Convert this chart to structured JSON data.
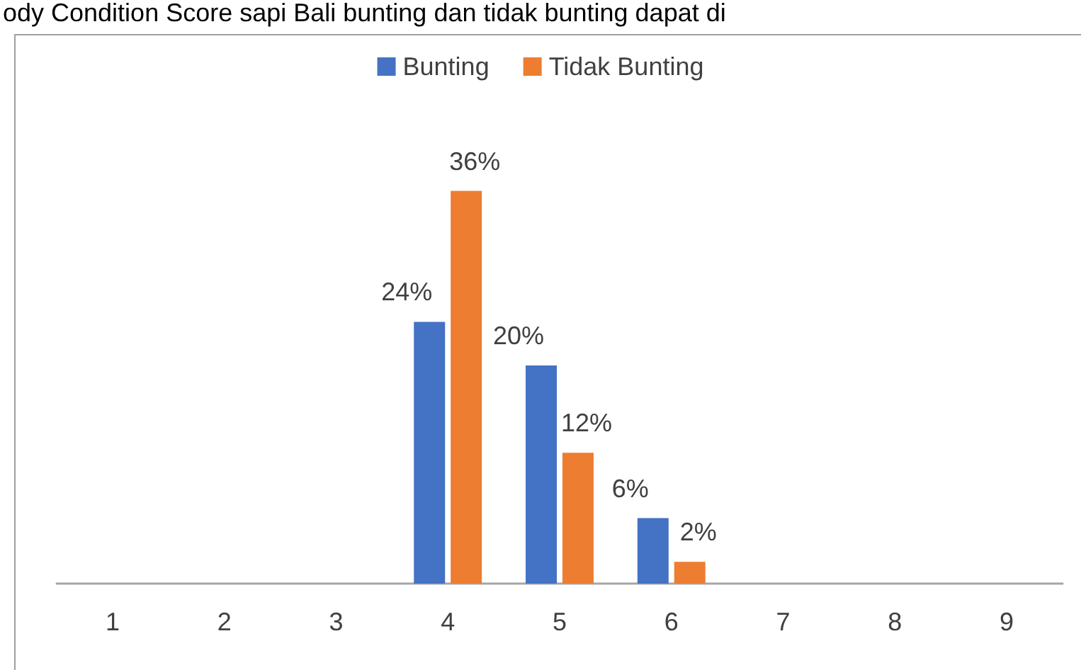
{
  "chart_data": {
    "type": "bar",
    "annotations": [
      "ody Condition Score sapi Bali bunting dan tidak bunting dapat di"
    ],
    "categories": [
      "1",
      "2",
      "3",
      "4",
      "5",
      "6",
      "7",
      "8",
      "9"
    ],
    "series": [
      {
        "name": "Bunting",
        "color": "#4472c4",
        "values": [
          0,
          0,
          0,
          24,
          20,
          6,
          0,
          0,
          0
        ],
        "value_labels": [
          null,
          null,
          null,
          "24%",
          "20%",
          "6%",
          null,
          null,
          null
        ]
      },
      {
        "name": "Tidak Bunting",
        "color": "#ed7d31",
        "values": [
          0,
          0,
          0,
          36,
          12,
          2,
          0,
          0,
          0
        ],
        "value_labels": [
          null,
          null,
          null,
          "36%",
          "12%",
          "2%",
          null,
          null,
          null
        ]
      }
    ],
    "legend": "top",
    "grid": false
  }
}
